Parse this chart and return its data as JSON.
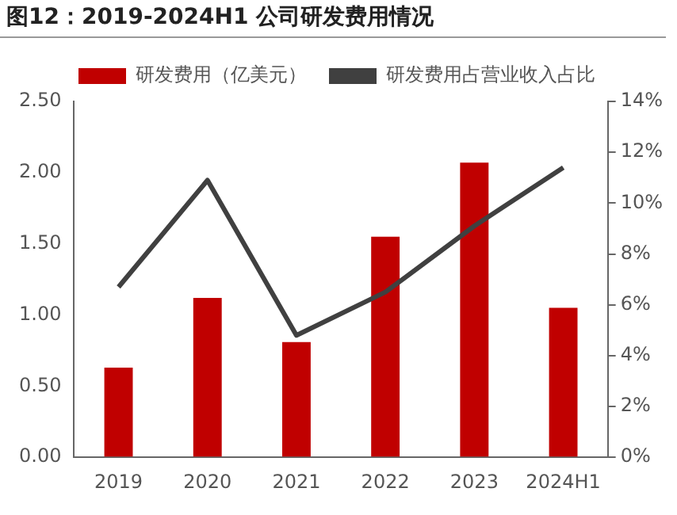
{
  "chart_data": {
    "type": "bar",
    "title": "图12：2019-2024H1 公司研发费用情况",
    "categories": [
      "2019",
      "2020",
      "2021",
      "2022",
      "2023",
      "2024H1"
    ],
    "series": [
      {
        "name": "研发费用（亿美元）",
        "color": "#c00000",
        "values": [
          0.63,
          1.12,
          0.81,
          1.55,
          2.07,
          1.05
        ]
      },
      {
        "name": "研发费用占营业收入占比",
        "type": "line",
        "axis": "y2",
        "color": "#404040",
        "values": [
          6.7,
          10.9,
          4.8,
          6.5,
          9.1,
          11.4
        ]
      }
    ],
    "ylim": [
      0,
      2.5
    ],
    "yticks": [
      {
        "value": 0,
        "label": "0.00"
      },
      {
        "value": 0.5,
        "label": "0.50"
      },
      {
        "value": 1,
        "label": "1.00"
      },
      {
        "value": 1.5,
        "label": "1.50"
      },
      {
        "value": 2,
        "label": "2.00"
      },
      {
        "value": 2.5,
        "label": "2.50"
      }
    ],
    "y2lim": [
      0,
      14
    ],
    "y2ticks": [
      {
        "value": 0,
        "label": "0%"
      },
      {
        "value": 2,
        "label": "2%"
      },
      {
        "value": 4,
        "label": "4%"
      },
      {
        "value": 6,
        "label": "6%"
      },
      {
        "value": 8,
        "label": "8%"
      },
      {
        "value": 10,
        "label": "10%"
      },
      {
        "value": 12,
        "label": "12%"
      },
      {
        "value": 14,
        "label": "14%"
      }
    ],
    "legend": "top",
    "grid": false,
    "marker": "none"
  }
}
